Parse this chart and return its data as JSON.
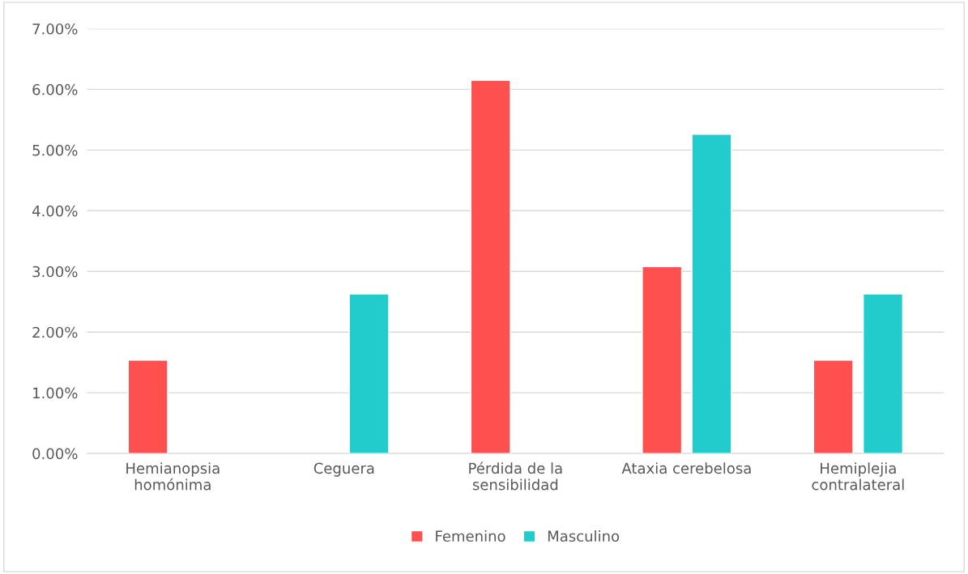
{
  "chart_data": {
    "type": "bar",
    "categories": [
      "Hemianopsia\nhomónima",
      "Ceguera",
      "Pérdida de la\nsensibilidad",
      "Ataxia cerebelosa",
      "Hemiplejia\ncontralateral"
    ],
    "series": [
      {
        "name": "Femenino",
        "color": "#ff5050",
        "values": [
          1.54,
          null,
          6.15,
          3.08,
          1.54
        ]
      },
      {
        "name": "Masculino",
        "color": "#22cccc",
        "values": [
          null,
          2.63,
          null,
          5.26,
          2.63
        ]
      }
    ],
    "ylim": [
      0,
      7
    ],
    "yticks": [
      {
        "value": 0,
        "label": "0.00%"
      },
      {
        "value": 1,
        "label": "1.00%"
      },
      {
        "value": 2,
        "label": "2.00%"
      },
      {
        "value": 3,
        "label": "3.00%"
      },
      {
        "value": 4,
        "label": "4.00%"
      },
      {
        "value": 5,
        "label": "5.00%"
      },
      {
        "value": 6,
        "label": "6.00%"
      },
      {
        "value": 7,
        "label": "7.00%"
      }
    ],
    "grid": "y",
    "legend": "bottom"
  }
}
